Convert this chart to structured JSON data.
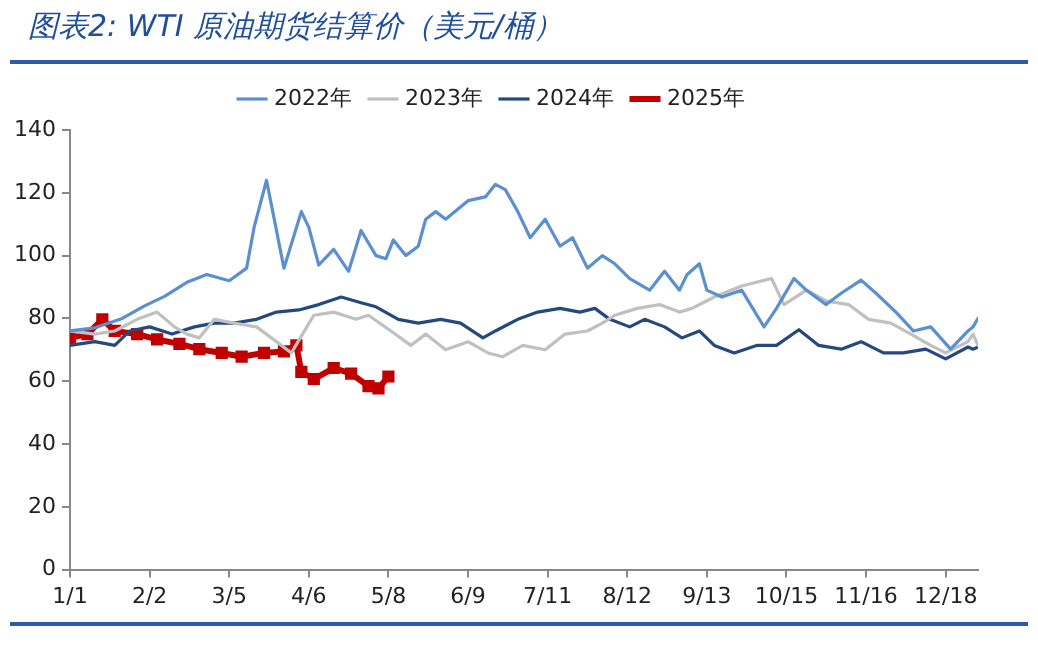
{
  "chart_data": {
    "type": "line",
    "title": "图表2: WTI 原油期货结算价（美元/桶）",
    "xlim": [
      "--01-01",
      "--12-31"
    ],
    "xticks": [
      {
        "value": "--01-01",
        "label": "1/1"
      },
      {
        "value": "--02-02",
        "label": "2/2"
      },
      {
        "value": "--03-05",
        "label": "3/5"
      },
      {
        "value": "--04-06",
        "label": "4/6"
      },
      {
        "value": "--05-08",
        "label": "5/8"
      },
      {
        "value": "--06-09",
        "label": "6/9"
      },
      {
        "value": "--07-11",
        "label": "7/11"
      },
      {
        "value": "--08-12",
        "label": "8/12"
      },
      {
        "value": "--09-13",
        "label": "9/13"
      },
      {
        "value": "--10-15",
        "label": "10/15"
      },
      {
        "value": "--11-16",
        "label": "11/16"
      },
      {
        "value": "--12-18",
        "label": "12/18"
      }
    ],
    "ylim": [
      0,
      140
    ],
    "yticks": [
      0,
      20,
      40,
      60,
      80,
      100,
      120,
      140
    ],
    "grid": false,
    "legend": "top",
    "marker": "none",
    "line_style": "solid",
    "series": [
      {
        "name": "2022年",
        "color": "#5b8fd0",
        "x": [
          "--01-01",
          "--01-11",
          "--01-22",
          "--01-31",
          "--02-08",
          "--02-17",
          "--02-25",
          "--03-05",
          "--03-12",
          "--03-15",
          "--03-20",
          "--03-23",
          "--03-27",
          "--04-03",
          "--04-06",
          "--04-10",
          "--04-16",
          "--04-22",
          "--04-27",
          "--05-03",
          "--05-07",
          "--05-10",
          "--05-15",
          "--05-20",
          "--05-23",
          "--05-27",
          "--05-31",
          "--06-09",
          "--06-16",
          "--06-20",
          "--06-24",
          "--06-29",
          "--07-04",
          "--07-10",
          "--07-16",
          "--07-21",
          "--07-27",
          "--08-02",
          "--08-07",
          "--08-13",
          "--08-21",
          "--08-27",
          "--09-02",
          "--09-05",
          "--09-10",
          "--09-13",
          "--09-19",
          "--09-27",
          "--10-06",
          "--10-11",
          "--10-18",
          "--10-23",
          "--10-31",
          "--11-06",
          "--11-14",
          "--11-20",
          "--11-28",
          "--12-05",
          "--12-12",
          "--12-20",
          "--12-27",
          "--12-29",
          "--12-31"
        ],
        "values": [
          76,
          77,
          80,
          84,
          87,
          91.5,
          94,
          92,
          96,
          109,
          124,
          112,
          96,
          114,
          109,
          97,
          102,
          95,
          108,
          100,
          99,
          105,
          100,
          103,
          111.6,
          114,
          111.6,
          117.5,
          118.7,
          122.7,
          121,
          114,
          105.7,
          111.6,
          103,
          105.7,
          96,
          100,
          97.4,
          92.7,
          89,
          95,
          89,
          93.9,
          97.4,
          89,
          86.8,
          89,
          77.3,
          83.2,
          92.7,
          89,
          84.4,
          88,
          92.2,
          88,
          82,
          76,
          77.3,
          70.2,
          76,
          77.3,
          80
        ]
      },
      {
        "name": "2023年",
        "color": "#c0c0c0",
        "x": [
          "--01-01",
          "--01-11",
          "--01-19",
          "--01-28",
          "--02-05",
          "--02-12",
          "--02-17",
          "--02-22",
          "--02-28",
          "--03-07",
          "--03-16",
          "--03-24",
          "--03-30",
          "--04-08",
          "--04-16",
          "--04-25",
          "--04-30",
          "--05-09",
          "--05-17",
          "--05-23",
          "--05-31",
          "--06-09",
          "--06-17",
          "--06-23",
          "--07-01",
          "--07-10",
          "--07-18",
          "--07-27",
          "--08-02",
          "--08-07",
          "--08-16",
          "--08-25",
          "--09-02",
          "--09-07",
          "--09-16",
          "--09-27",
          "--10-09",
          "--10-14",
          "--10-23",
          "--10-31",
          "--11-09",
          "--11-17",
          "--11-26",
          "--12-04",
          "--12-12",
          "--12-18",
          "--12-27",
          "--12-29",
          "--12-31"
        ],
        "values": [
          76,
          75,
          76,
          79.7,
          82,
          77.3,
          75,
          73.8,
          79.7,
          78.5,
          77.3,
          72.6,
          69,
          81,
          82,
          79.7,
          81,
          76,
          71.4,
          75,
          70,
          72.6,
          69,
          67.8,
          71.4,
          70,
          75,
          76,
          78.5,
          81,
          83.2,
          84.4,
          82,
          83.2,
          86.8,
          90.3,
          92.7,
          84.4,
          89,
          85.6,
          84.4,
          79.7,
          78.5,
          75,
          71.4,
          69,
          72.6,
          75,
          71.4
        ]
      },
      {
        "name": "2024年",
        "color": "#24487f",
        "x": [
          "--01-01",
          "--01-11",
          "--01-19",
          "--01-25",
          "--02-02",
          "--02-11",
          "--02-20",
          "--02-28",
          "--03-07",
          "--03-16",
          "--03-24",
          "--04-02",
          "--04-10",
          "--04-19",
          "--04-27",
          "--05-03",
          "--05-12",
          "--05-20",
          "--05-29",
          "--06-06",
          "--06-15",
          "--06-20",
          "--06-29",
          "--07-07",
          "--07-16",
          "--07-24",
          "--07-30",
          "--08-05",
          "--08-13",
          "--08-19",
          "--08-27",
          "--09-03",
          "--09-10",
          "--09-16",
          "--09-24",
          "--10-03",
          "--10-11",
          "--10-20",
          "--10-28",
          "--11-06",
          "--11-14",
          "--11-23",
          "--12-01",
          "--12-10",
          "--12-18",
          "--12-27",
          "--12-29",
          "--12-31"
        ],
        "values": [
          71.4,
          72.6,
          71.4,
          76,
          77.3,
          75,
          77.3,
          78.5,
          78.5,
          79.7,
          82,
          82.7,
          84.4,
          86.8,
          85,
          83.7,
          79.7,
          78.5,
          79.7,
          78.5,
          73.8,
          76,
          79.7,
          82,
          83.2,
          82,
          83.2,
          79.7,
          77.3,
          79.7,
          77.3,
          73.8,
          76,
          71.4,
          69,
          71.4,
          71.4,
          76.4,
          71.4,
          70.2,
          72.6,
          69,
          69,
          70.2,
          67.1,
          70.9,
          70.2,
          70.9
        ]
      },
      {
        "name": "2025年",
        "color": "#c00000",
        "marker": "square",
        "x": [
          "--01-01",
          "--01-08",
          "--01-14",
          "--01-19",
          "--01-28",
          "--02-05",
          "--02-14",
          "--02-22",
          "--03-02",
          "--03-10",
          "--03-19",
          "--03-27",
          "--04-01",
          "--04-03",
          "--04-08",
          "--04-16",
          "--04-23",
          "--04-30",
          "--05-04",
          "--05-08"
        ],
        "values": [
          73.8,
          75,
          79.7,
          76,
          75,
          73.3,
          71.9,
          70.2,
          69,
          67.8,
          69,
          69.5,
          71.4,
          63,
          60.7,
          64.2,
          62.4,
          58.4,
          57.7,
          61.5
        ]
      }
    ]
  }
}
